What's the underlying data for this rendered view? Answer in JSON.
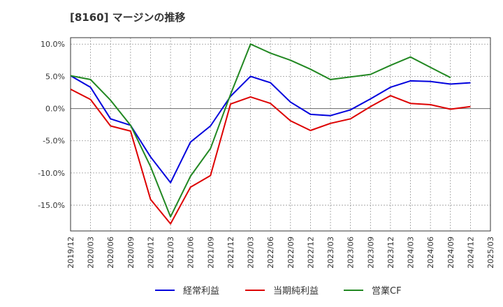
{
  "chart_data": {
    "type": "line",
    "title": "[8160]  マージンの推移",
    "xlabel": "",
    "ylabel": "",
    "ylim": [
      -19,
      11
    ],
    "y_ticks": [
      10,
      5,
      0,
      -5,
      -10,
      -15
    ],
    "y_tick_labels": [
      "10.0%",
      "5.0%",
      "0.0%",
      "-5.0%",
      "-10.0%",
      "-15.0%"
    ],
    "x_tick_labels": [
      "2019/12",
      "2020/03",
      "2020/06",
      "2020/09",
      "2020/12",
      "2021/03",
      "2021/06",
      "2021/09",
      "2021/12",
      "2022/03",
      "2022/06",
      "2022/09",
      "2022/12",
      "2023/03",
      "2023/06",
      "2023/09",
      "2023/12",
      "2024/03",
      "2024/06",
      "2024/09",
      "2024/12",
      "2025/03"
    ],
    "grid": true,
    "legend_position": "bottom",
    "series": [
      {
        "name": "経常利益",
        "color": "#0000dd",
        "values": [
          5.1,
          3.3,
          -1.6,
          -2.6,
          -7.5,
          -11.5,
          -5.2,
          -2.7,
          1.9,
          5.0,
          4.0,
          1.0,
          -0.9,
          -1.1,
          -0.2,
          1.5,
          3.3,
          4.3,
          4.2,
          3.8,
          4.0,
          null
        ]
      },
      {
        "name": "当期純利益",
        "color": "#dd0000",
        "values": [
          3.0,
          1.4,
          -2.7,
          -3.5,
          -14.1,
          -17.9,
          -12.2,
          -10.4,
          0.7,
          1.8,
          0.8,
          -1.9,
          -3.4,
          -2.3,
          -1.6,
          0.3,
          2.0,
          0.8,
          0.6,
          -0.1,
          0.3,
          null
        ]
      },
      {
        "name": "営業CF",
        "color": "#228822",
        "values": [
          5.1,
          4.5,
          1.3,
          -2.6,
          -9.0,
          -16.8,
          -10.5,
          -6.2,
          2.2,
          10.0,
          8.6,
          7.5,
          6.1,
          4.5,
          4.9,
          5.3,
          6.7,
          8.0,
          6.4,
          4.8,
          null,
          null
        ]
      }
    ]
  }
}
